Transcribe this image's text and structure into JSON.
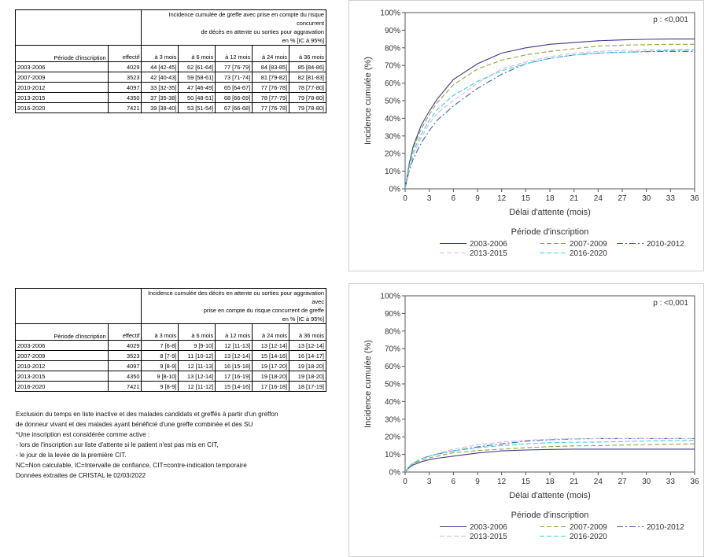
{
  "table1": {
    "title_lines": [
      "Incidence cumulée de greffe avec prise en compte du risque concurrent",
      "de décès en attente ou sorties pour aggravation",
      "en % [IC à 95%]"
    ],
    "col_periode": "Période d'inscription",
    "col_effectif": "effectif",
    "cols": [
      "à 3 mois",
      "à 6 mois",
      "à 12 mois",
      "à 24 mois",
      "à 36 mois"
    ],
    "rows": [
      {
        "periode": "2003-2006",
        "effectif": "4029",
        "v": [
          "44 [42-45]",
          "62 [61-64]",
          "77 [76-79]",
          "84 [83-85]",
          "85 [84-86]"
        ]
      },
      {
        "periode": "2007-2009",
        "effectif": "3523",
        "v": [
          "42 [40-43]",
          "59 [58-61]",
          "73 [71-74]",
          "81 [79-82]",
          "82 [81-83]"
        ]
      },
      {
        "periode": "2010-2012",
        "effectif": "4097",
        "v": [
          "33 [32-35]",
          "47 [46-49]",
          "65 [64-67]",
          "77 [76-78]",
          "78 [77-80]"
        ]
      },
      {
        "periode": "2013-2015",
        "effectif": "4350",
        "v": [
          "37 [35-38]",
          "50 [48-51]",
          "68 [66-69]",
          "78 [77-79]",
          "79 [78-80]"
        ]
      },
      {
        "periode": "2016-2020",
        "effectif": "7421",
        "v": [
          "39 [38-40]",
          "53 [51-54]",
          "67 [66-68]",
          "77 [76-78]",
          "79 [78-80]"
        ]
      }
    ]
  },
  "table2": {
    "title_lines": [
      "Incidence cumulée des décès en attente ou sorties pour aggravation avec",
      "prise en compte du risque concurrent de greffe",
      "en % [IC à 95%]"
    ],
    "col_periode": "Période d'inscription",
    "col_effectif": "effectif",
    "cols": [
      "à 3 mois",
      "à 6 mois",
      "à 12 mois",
      "à 24 mois",
      "à 36 mois"
    ],
    "rows": [
      {
        "periode": "2003-2006",
        "effectif": "4029",
        "v": [
          "7 [6-8]",
          "9 [9-10]",
          "12 [11-13]",
          "13 [12-14]",
          "13 [12-14]"
        ]
      },
      {
        "periode": "2007-2009",
        "effectif": "3523",
        "v": [
          "8 [7-9]",
          "11 [10-12]",
          "13 [12-14]",
          "15 [14-16]",
          "16 [14-17]"
        ]
      },
      {
        "periode": "2010-2012",
        "effectif": "4097",
        "v": [
          "9 [8-9]",
          "12 [11-13]",
          "16 [15-18]",
          "19 [17-20]",
          "19 [18-20]"
        ]
      },
      {
        "periode": "2013-2015",
        "effectif": "4350",
        "v": [
          "9 [8-10]",
          "13 [12-14]",
          "17 [16-19]",
          "19 [18-20]",
          "19 [18-20]"
        ]
      },
      {
        "periode": "2016-2020",
        "effectif": "7421",
        "v": [
          "9 [8-9]",
          "12 [11-12]",
          "15 [14-16]",
          "17 [16-18]",
          "18 [17-19]"
        ]
      }
    ]
  },
  "notes": [
    "Exclusion du temps en liste inactive et des malades candidats et greffés à partir d'un greffon",
    "de donneur vivant et des malades ayant bénéficié d'une greffe combinée et des SU",
    "*Une inscription est considérée comme active :",
    "- lors de l'inscription sur liste d'attente si le patient n'est pas mis en CIT,",
    "- le jour de la levée de la première CIT.",
    "NC=Non calculable, IC=Intervalle de confiance, CIT=contre-indication temporaire",
    "Données extraites de CRISTAL le 02/03/2022"
  ],
  "chart_data": [
    {
      "type": "line",
      "pvalue": "p : <0,001",
      "xlabel": "Délai d'attente (mois)",
      "ylabel": "Incidence cumulée (%)",
      "xlim": [
        0,
        36
      ],
      "ylim": [
        0,
        100
      ],
      "xticks": [
        0,
        3,
        6,
        9,
        12,
        15,
        18,
        21,
        24,
        27,
        30,
        33,
        36
      ],
      "yticks": [
        "0%",
        "10%",
        "20%",
        "30%",
        "40%",
        "50%",
        "60%",
        "70%",
        "80%",
        "90%",
        "100%"
      ],
      "legend_title": "Période d'inscription",
      "legend_position": "bottom",
      "x": [
        0,
        0.5,
        1,
        2,
        3,
        4,
        6,
        9,
        12,
        15,
        18,
        21,
        24,
        27,
        30,
        33,
        36
      ],
      "series": [
        {
          "name": "2003-2006",
          "color": "#3b3a8c",
          "dash": "",
          "values": [
            0,
            14,
            24,
            36,
            44,
            51,
            62,
            71,
            77,
            80,
            82,
            83,
            84,
            84.5,
            84.8,
            85,
            85
          ]
        },
        {
          "name": "2007-2009",
          "color": "#9aa23a",
          "dash": "6,3",
          "values": [
            0,
            13,
            23,
            34,
            42,
            49,
            59,
            68,
            73,
            76,
            78,
            79.5,
            81,
            81.5,
            81.8,
            82,
            82
          ]
        },
        {
          "name": "2010-2012",
          "color": "#2f6ab0",
          "dash": "8,3,2,3",
          "values": [
            0,
            10,
            17,
            26,
            33,
            39,
            47,
            57,
            65,
            71,
            74,
            76,
            77,
            77.5,
            77.8,
            78,
            78
          ]
        },
        {
          "name": "2013-2015",
          "color": "#d9b3e6",
          "dash": "6,3",
          "values": [
            0,
            11,
            19,
            29,
            37,
            43,
            50,
            60,
            68,
            72,
            75,
            77,
            78,
            78.5,
            78.8,
            79,
            79
          ]
        },
        {
          "name": "2016-2020",
          "color": "#3fd0dd",
          "dash": "6,3",
          "values": [
            0,
            12,
            21,
            31,
            39,
            45,
            53,
            61,
            67,
            71,
            74,
            76,
            77,
            77.5,
            78,
            78.5,
            79
          ]
        }
      ]
    },
    {
      "type": "line",
      "pvalue": "p : <0,001",
      "xlabel": "Délai d'attente (mois)",
      "ylabel": "Incidence cumulée (%)",
      "xlim": [
        0,
        36
      ],
      "ylim": [
        0,
        100
      ],
      "xticks": [
        0,
        3,
        6,
        9,
        12,
        15,
        18,
        21,
        24,
        27,
        30,
        33,
        36
      ],
      "yticks": [
        "0%",
        "10%",
        "20%",
        "30%",
        "40%",
        "50%",
        "60%",
        "70%",
        "80%",
        "90%",
        "100%"
      ],
      "legend_title": "Période d'inscription",
      "legend_position": "bottom",
      "x": [
        0,
        0.5,
        1,
        2,
        3,
        4,
        6,
        9,
        12,
        15,
        18,
        21,
        24,
        27,
        30,
        33,
        36
      ],
      "series": [
        {
          "name": "2003-2006",
          "color": "#3b3a8c",
          "dash": "",
          "values": [
            0,
            2.5,
            4,
            5.8,
            7,
            7.8,
            9,
            10.8,
            12,
            12.5,
            12.8,
            13,
            13,
            13,
            13,
            13,
            13
          ]
        },
        {
          "name": "2007-2009",
          "color": "#9aa23a",
          "dash": "6,3",
          "values": [
            0,
            2.8,
            4.5,
            6.6,
            8,
            9,
            11,
            12.2,
            13,
            13.8,
            14.4,
            14.8,
            15,
            15.3,
            15.6,
            15.8,
            16
          ]
        },
        {
          "name": "2010-2012",
          "color": "#2f6ab0",
          "dash": "8,3,2,3",
          "values": [
            0,
            3,
            5,
            7.5,
            9,
            10.2,
            12,
            14.3,
            16,
            17.5,
            18.3,
            18.8,
            19,
            19,
            19,
            19,
            19
          ]
        },
        {
          "name": "2013-2015",
          "color": "#d9b3e6",
          "dash": "6,3",
          "values": [
            0,
            3.2,
            5.2,
            7.6,
            9,
            10.5,
            13,
            15.5,
            17,
            18,
            18.6,
            18.9,
            19,
            19,
            19,
            19,
            19
          ]
        },
        {
          "name": "2016-2020",
          "color": "#3fd0dd",
          "dash": "6,3",
          "values": [
            0,
            3,
            5,
            7.5,
            9,
            10.2,
            12,
            13.8,
            15,
            16,
            16.6,
            16.9,
            17,
            17.3,
            17.6,
            17.8,
            18
          ]
        }
      ]
    }
  ]
}
